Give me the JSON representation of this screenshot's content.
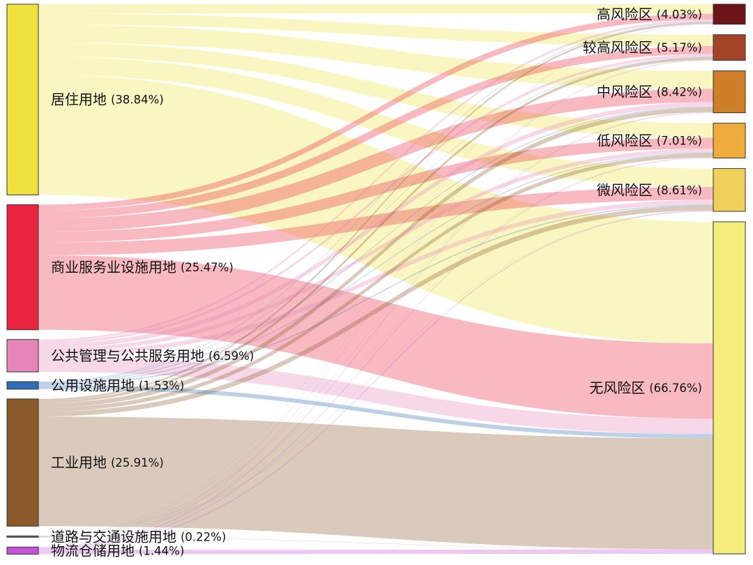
{
  "chart_data": {
    "type": "sankey",
    "sources": [
      {
        "id": "residential",
        "label": "居住用地",
        "pct_text": "(38.84%)",
        "value": 38.84,
        "color": "#f0e23e"
      },
      {
        "id": "commercial",
        "label": "商业服务业设施用地",
        "pct_text": "(25.47%)",
        "value": 25.47,
        "color": "#e8243f"
      },
      {
        "id": "public_admin",
        "label": "公共管理与公共服务用地",
        "pct_text": "(6.59%)",
        "value": 6.59,
        "color": "#e685b8"
      },
      {
        "id": "utilities",
        "label": "公用设施用地",
        "pct_text": "(1.53%)",
        "value": 1.53,
        "color": "#2e6fb8"
      },
      {
        "id": "industrial",
        "label": "工业用地",
        "pct_text": "(25.91%)",
        "value": 25.91,
        "color": "#8b5a2b"
      },
      {
        "id": "transport",
        "label": "道路与交通设施用地",
        "pct_text": "(0.22%)",
        "value": 0.22,
        "color": "#6b6b6b"
      },
      {
        "id": "logistics",
        "label": "物流仓储用地",
        "pct_text": "(1.44%)",
        "value": 1.44,
        "color": "#c454d8"
      }
    ],
    "targets": [
      {
        "id": "high",
        "label": "高风险区",
        "pct_text": "(4.03%)",
        "value": 4.03,
        "color": "#6d1419"
      },
      {
        "id": "mid_high",
        "label": "较高风险区",
        "pct_text": "(5.17%)",
        "value": 5.17,
        "color": "#a24428"
      },
      {
        "id": "mid",
        "label": "中风险区",
        "pct_text": "(8.42%)",
        "value": 8.42,
        "color": "#cf7f28"
      },
      {
        "id": "low",
        "label": "低风险区",
        "pct_text": "(7.01%)",
        "value": 7.01,
        "color": "#eeac3c"
      },
      {
        "id": "micro",
        "label": "微风险区",
        "pct_text": "(8.61%)",
        "value": 8.61,
        "color": "#f1cf5c"
      },
      {
        "id": "none",
        "label": "无风险区",
        "pct_text": "(66.76%)",
        "value": 66.76,
        "color": "#f5ee7c"
      }
    ],
    "flows": [
      {
        "source": "residential",
        "target": "high",
        "value": 1.9
      },
      {
        "source": "residential",
        "target": "mid_high",
        "value": 2.3
      },
      {
        "source": "residential",
        "target": "mid",
        "value": 3.6
      },
      {
        "source": "residential",
        "target": "low",
        "value": 2.9
      },
      {
        "source": "residential",
        "target": "micro",
        "value": 3.7
      },
      {
        "source": "residential",
        "target": "none",
        "value": 24.44
      },
      {
        "source": "commercial",
        "target": "high",
        "value": 1.2
      },
      {
        "source": "commercial",
        "target": "mid_high",
        "value": 1.6
      },
      {
        "source": "commercial",
        "target": "mid",
        "value": 2.7
      },
      {
        "source": "commercial",
        "target": "low",
        "value": 2.2
      },
      {
        "source": "commercial",
        "target": "micro",
        "value": 2.6
      },
      {
        "source": "commercial",
        "target": "none",
        "value": 15.17
      },
      {
        "source": "public_admin",
        "target": "high",
        "value": 0.4
      },
      {
        "source": "public_admin",
        "target": "mid_high",
        "value": 0.5
      },
      {
        "source": "public_admin",
        "target": "mid",
        "value": 0.9
      },
      {
        "source": "public_admin",
        "target": "low",
        "value": 0.8
      },
      {
        "source": "public_admin",
        "target": "micro",
        "value": 0.9
      },
      {
        "source": "public_admin",
        "target": "none",
        "value": 3.09
      },
      {
        "source": "utilities",
        "target": "high",
        "value": 0.1
      },
      {
        "source": "utilities",
        "target": "mid_high",
        "value": 0.1
      },
      {
        "source": "utilities",
        "target": "mid",
        "value": 0.15
      },
      {
        "source": "utilities",
        "target": "low",
        "value": 0.15
      },
      {
        "source": "utilities",
        "target": "micro",
        "value": 0.2
      },
      {
        "source": "utilities",
        "target": "none",
        "value": 0.83
      },
      {
        "source": "industrial",
        "target": "high",
        "value": 0.35
      },
      {
        "source": "industrial",
        "target": "mid_high",
        "value": 0.55
      },
      {
        "source": "industrial",
        "target": "mid",
        "value": 0.9
      },
      {
        "source": "industrial",
        "target": "low",
        "value": 0.8
      },
      {
        "source": "industrial",
        "target": "micro",
        "value": 1.0
      },
      {
        "source": "industrial",
        "target": "none",
        "value": 22.31
      },
      {
        "source": "transport",
        "target": "high",
        "value": 0.03
      },
      {
        "source": "transport",
        "target": "mid_high",
        "value": 0.03
      },
      {
        "source": "transport",
        "target": "mid",
        "value": 0.04
      },
      {
        "source": "transport",
        "target": "low",
        "value": 0.03
      },
      {
        "source": "transport",
        "target": "micro",
        "value": 0.04
      },
      {
        "source": "transport",
        "target": "none",
        "value": 0.05
      },
      {
        "source": "logistics",
        "target": "high",
        "value": 0.05
      },
      {
        "source": "logistics",
        "target": "mid_high",
        "value": 0.09
      },
      {
        "source": "logistics",
        "target": "mid",
        "value": 0.13
      },
      {
        "source": "logistics",
        "target": "low",
        "value": 0.13
      },
      {
        "source": "logistics",
        "target": "micro",
        "value": 0.17
      },
      {
        "source": "logistics",
        "target": "none",
        "value": 0.87
      }
    ]
  }
}
